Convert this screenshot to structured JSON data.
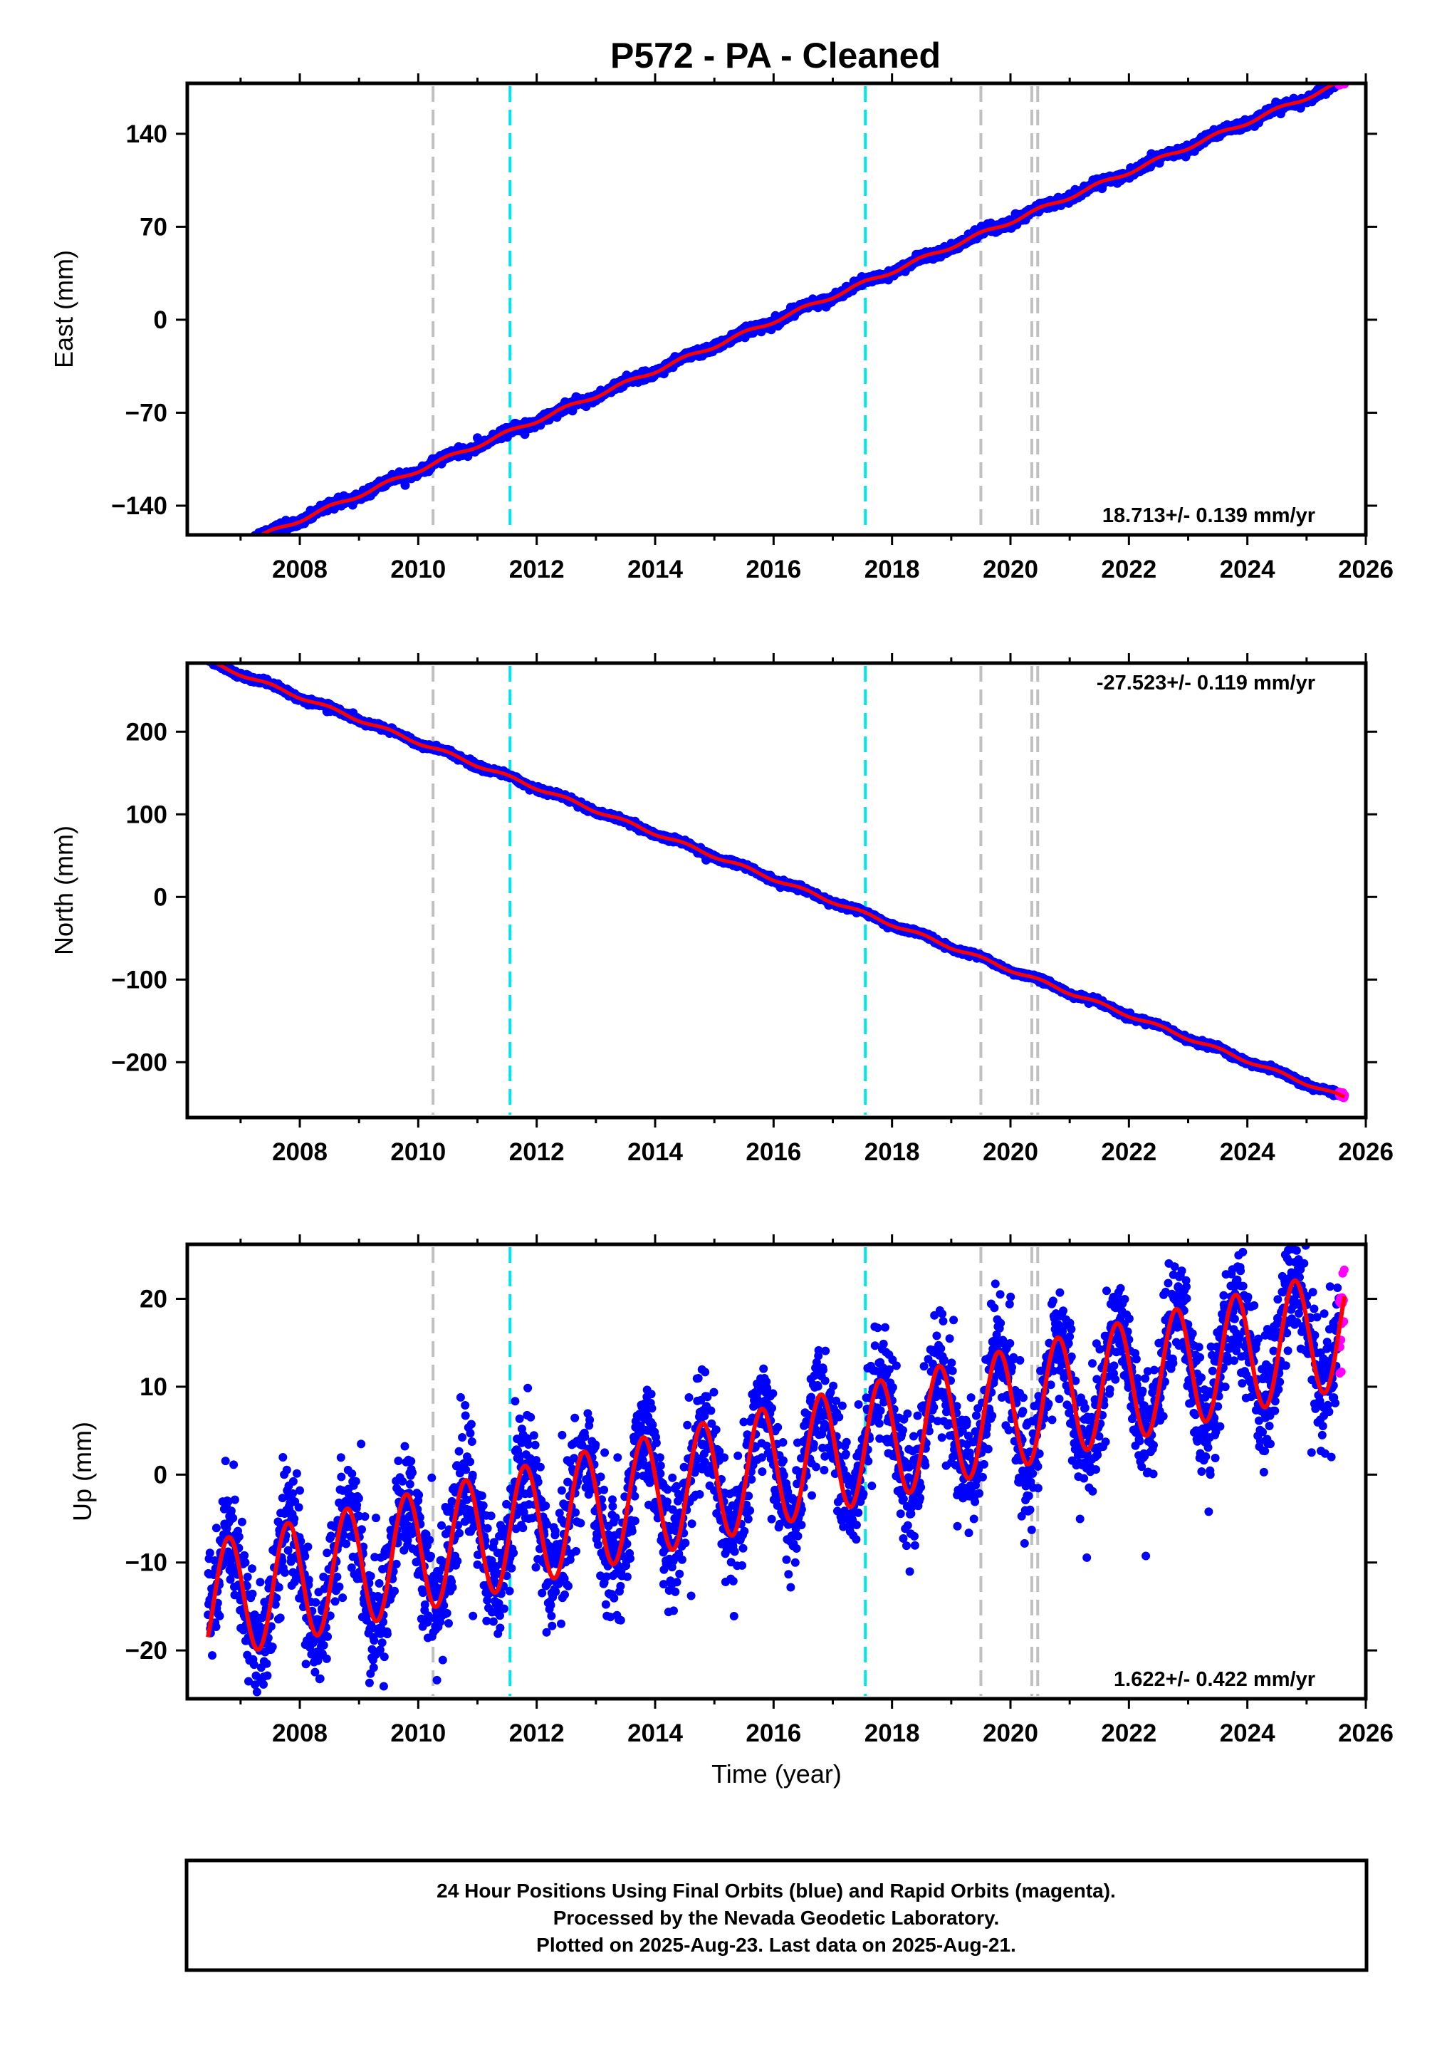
{
  "title": "P572  - PA - Cleaned",
  "footer": {
    "lines": [
      "24 Hour Positions Using Final Orbits (blue) and Rapid Orbits (magenta).",
      "Processed by the Nevada Geodetic Laboratory.",
      "Plotted on 2025-Aug-23. Last data on 2025-Aug-21."
    ]
  },
  "colors": {
    "final_orbits": "#0000ff",
    "rapid_orbits": "#ff00ff",
    "model_fit": "#ff0000",
    "offset_gray": "#c0c0c0",
    "offset_cyan": "#00e5ee",
    "frame": "#000000"
  },
  "chart_data": [
    {
      "type": "scatter",
      "component": "east",
      "ylabel": "East (mm)",
      "xlabel": "",
      "xlim": [
        2006.1,
        2026.0
      ],
      "ylim": [
        -162,
        178
      ],
      "xticks": [
        2008,
        2010,
        2012,
        2014,
        2016,
        2018,
        2020,
        2022,
        2024,
        2026
      ],
      "yticks": [
        -140,
        -70,
        0,
        70,
        140
      ],
      "rate_text": "18.713+/- 0.139 mm/yr",
      "rate_position": "bottom-right",
      "data_start": 2006.45,
      "data_end": 2025.64,
      "rapid_start": 2025.55,
      "trend": {
        "rate_mm_per_yr": 18.713,
        "value_at_2016": -1
      },
      "seasonal": {
        "annual_amplitude": 1.5
      },
      "scatter_sigma": 1.5,
      "offsets": [
        {
          "year": 2010.25,
          "kind": "equipment"
        },
        {
          "year": 2011.55,
          "kind": "earthquake"
        },
        {
          "year": 2017.55,
          "kind": "earthquake"
        },
        {
          "year": 2019.5,
          "kind": "equipment"
        },
        {
          "year": 2020.36,
          "kind": "equipment"
        },
        {
          "year": 2020.46,
          "kind": "equipment"
        }
      ]
    },
    {
      "type": "scatter",
      "component": "north",
      "ylabel": "North (mm)",
      "xlabel": "",
      "xlim": [
        2006.1,
        2026.0
      ],
      "ylim": [
        -267,
        283
      ],
      "xticks": [
        2008,
        2010,
        2012,
        2014,
        2016,
        2018,
        2020,
        2022,
        2024,
        2026
      ],
      "yticks": [
        -200,
        -100,
        0,
        100,
        200
      ],
      "rate_text": "-27.523+/- 0.119 mm/yr",
      "rate_position": "top-right",
      "data_start": 2006.45,
      "data_end": 2025.64,
      "rapid_start": 2025.55,
      "trend": {
        "rate_mm_per_yr": -27.523,
        "value_at_2016": 22
      },
      "seasonal": {
        "annual_amplitude": 2
      },
      "scatter_sigma": 1.5,
      "offsets": [
        {
          "year": 2010.25,
          "kind": "equipment"
        },
        {
          "year": 2011.55,
          "kind": "earthquake"
        },
        {
          "year": 2017.55,
          "kind": "earthquake"
        },
        {
          "year": 2019.5,
          "kind": "equipment"
        },
        {
          "year": 2020.36,
          "kind": "equipment"
        },
        {
          "year": 2020.46,
          "kind": "equipment"
        }
      ]
    },
    {
      "type": "scatter",
      "component": "up",
      "ylabel": "Up (mm)",
      "xlabel": "Time (year)",
      "xlim": [
        2006.1,
        2026.0
      ],
      "ylim": [
        -25.5,
        26.2
      ],
      "xticks": [
        2008,
        2010,
        2012,
        2014,
        2016,
        2018,
        2020,
        2022,
        2024,
        2026
      ],
      "yticks": [
        -20,
        -10,
        0,
        10,
        20
      ],
      "rate_text": "1.622+/- 0.422 mm/yr",
      "rate_position": "bottom-right",
      "data_start": 2006.45,
      "data_end": 2025.64,
      "rapid_start": 2025.55,
      "trend": {
        "rate_mm_per_yr": 1.622,
        "value_at_2016": 1
      },
      "seasonal": {
        "annual_amplitude": 6.8,
        "peak_phase_years": 0.8
      },
      "scatter_sigma": 3.3,
      "offsets": [
        {
          "year": 2010.25,
          "kind": "equipment"
        },
        {
          "year": 2011.55,
          "kind": "earthquake"
        },
        {
          "year": 2017.55,
          "kind": "earthquake"
        },
        {
          "year": 2019.5,
          "kind": "equipment"
        },
        {
          "year": 2020.36,
          "kind": "equipment"
        },
        {
          "year": 2020.46,
          "kind": "equipment"
        }
      ]
    }
  ]
}
